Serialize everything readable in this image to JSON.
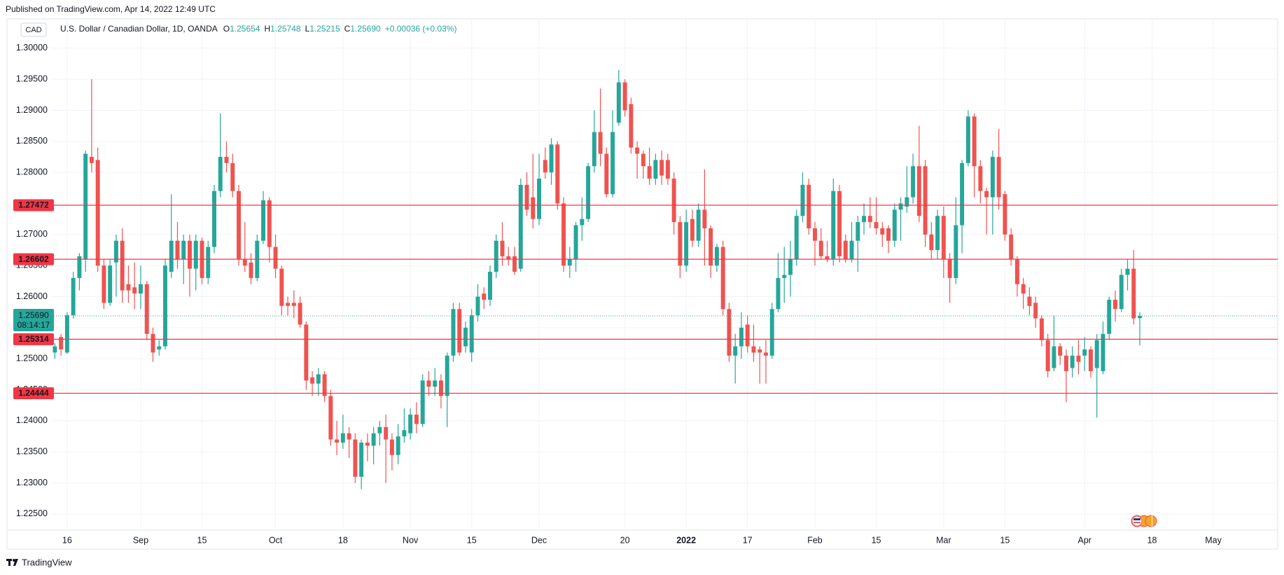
{
  "header": {
    "published": "Published on TradingView.com, Apr 14, 2022 12:49 UTC"
  },
  "footer": {
    "brand": "TradingView"
  },
  "chart_data": {
    "type": "candlestick",
    "title": "U.S. Dollar / Canadian Dollar, 1D, OANDA",
    "currency": "CAD",
    "legend": [
      {
        "label": "O",
        "value": "1.25654"
      },
      {
        "label": "H",
        "value": "1.25748"
      },
      {
        "label": "L",
        "value": "1.25215"
      },
      {
        "label": "C",
        "value": "1.25690"
      }
    ],
    "change": "+0.00036 (+0.03%)",
    "categories": [
      null,
      null,
      "16",
      null,
      null,
      null,
      null,
      null,
      null,
      null,
      null,
      null,
      null,
      null,
      "Sep",
      null,
      null,
      null,
      null,
      null,
      null,
      null,
      null,
      null,
      "15",
      null,
      null,
      null,
      null,
      null,
      null,
      null,
      null,
      null,
      null,
      null,
      "Oct",
      null,
      null,
      null,
      null,
      null,
      null,
      null,
      null,
      null,
      null,
      "18",
      null,
      null,
      null,
      null,
      null,
      null,
      null,
      null,
      null,
      null,
      "Nov",
      null,
      null,
      null,
      null,
      null,
      null,
      null,
      null,
      null,
      "15",
      null,
      null,
      null,
      null,
      null,
      null,
      null,
      null,
      null,
      null,
      "Dec",
      null,
      null,
      null,
      null,
      null,
      null,
      null,
      null,
      null,
      null,
      null,
      null,
      null,
      "20",
      null,
      null,
      null,
      null,
      null,
      null,
      null,
      null,
      null,
      "2022",
      null,
      null,
      null,
      null,
      null,
      null,
      null,
      null,
      null,
      "17",
      null,
      null,
      null,
      null,
      null,
      null,
      null,
      null,
      null,
      null,
      "Feb",
      null,
      null,
      null,
      null,
      null,
      null,
      null,
      null,
      null,
      "15",
      null,
      null,
      null,
      null,
      null,
      null,
      null,
      null,
      null,
      null,
      "Mar",
      null,
      null,
      null,
      null,
      null,
      null,
      null,
      null,
      null,
      "15",
      null,
      null,
      null,
      null,
      null,
      null,
      null,
      null,
      null,
      null,
      null,
      null,
      "Apr",
      null,
      null,
      null,
      null,
      null,
      null,
      null,
      null,
      null,
      null,
      "18",
      null,
      null,
      null,
      null,
      null,
      null,
      null,
      null,
      null,
      "May",
      null,
      null,
      null,
      null,
      null,
      null,
      null,
      null,
      null,
      null
    ],
    "open": [
      1.251,
      1.2535,
      1.251,
      1.257,
      1.263,
      1.266,
      1.2825,
      1.282,
      1.265,
      1.259,
      1.2655,
      1.269,
      1.262,
      1.2615,
      1.2605,
      1.262,
      1.254,
      1.2515,
      1.252,
      1.264,
      1.269,
      1.266,
      1.269,
      1.2645,
      1.269,
      1.263,
      1.268,
      1.277,
      1.2825,
      1.2815,
      1.277,
      1.266,
      1.2655,
      1.263,
      1.269,
      1.2755,
      1.268,
      1.2645,
      1.259,
      1.259,
      1.259,
      1.2555,
      1.247,
      1.246,
      1.2475,
      1.244,
      1.237,
      1.2365,
      1.238,
      1.237,
      1.231,
      1.2365,
      1.236,
      1.238,
      1.239,
      1.237,
      1.2345,
      1.2375,
      1.238,
      1.241,
      1.2395,
      1.2465,
      1.2455,
      1.2465,
      1.244,
      1.2505,
      1.258,
      1.252,
      1.251,
      1.257,
      1.2605,
      1.2595,
      1.264,
      1.269,
      1.2665,
      1.2665,
      1.2645,
      1.278,
      1.276,
      1.2725,
      1.282,
      1.28,
      1.2845,
      1.275,
      1.265,
      1.266,
      1.2715,
      1.2725,
      1.281,
      1.2865,
      1.283,
      1.2765,
      1.288,
      1.2945,
      1.291,
      1.284,
      1.283,
      1.281,
      1.279,
      1.282,
      1.282,
      1.279,
      1.272,
      1.265,
      1.2725,
      1.269,
      1.274,
      1.271,
      1.265,
      1.268,
      1.258,
      1.2505,
      1.252,
      1.2555,
      1.252,
      1.2515,
      1.251,
      1.2505,
      1.258,
      1.263,
      1.2635,
      1.266,
      1.273,
      1.278,
      1.271,
      1.269,
      1.2665,
      1.266,
      1.277,
      1.269,
      1.266,
      1.269,
      1.272,
      1.273,
      1.272,
      1.271,
      1.271,
      1.269,
      1.274,
      1.2745,
      1.276,
      1.281,
      1.281,
      1.27,
      1.2675,
      1.273,
      1.266,
      1.263,
      1.2715,
      1.2815,
      1.289,
      1.281,
      1.277,
      1.276,
      1.2825,
      1.2765,
      1.27,
      1.266,
      1.262,
      1.26,
      1.259,
      1.2565,
      1.253,
      1.2485,
      1.252,
      1.2505,
      1.2485,
      1.2505,
      1.2505,
      1.2515,
      1.2485,
      1.248,
      1.254,
      1.2595,
      1.258,
      1.2635,
      1.2645,
      1.25654,
      null,
      null,
      null,
      null,
      null,
      null,
      null,
      null,
      null,
      null,
      null,
      null,
      null,
      null,
      null,
      null,
      null,
      null,
      null,
      null,
      null,
      null
    ],
    "high": [
      1.2525,
      1.254,
      1.2575,
      1.264,
      1.267,
      1.2835,
      1.295,
      1.284,
      1.266,
      1.266,
      1.27,
      1.271,
      1.265,
      1.2655,
      1.265,
      1.2625,
      1.255,
      1.253,
      1.266,
      1.2765,
      1.272,
      1.27,
      1.27,
      1.27,
      1.2695,
      1.269,
      1.278,
      1.2895,
      1.285,
      1.283,
      1.278,
      1.272,
      1.267,
      1.27,
      1.277,
      1.276,
      1.27,
      1.265,
      1.26,
      1.261,
      1.26,
      1.256,
      1.248,
      1.2485,
      1.248,
      1.245,
      1.24,
      1.241,
      1.239,
      1.238,
      1.237,
      1.238,
      1.239,
      1.24,
      1.241,
      1.238,
      1.2395,
      1.242,
      1.242,
      1.243,
      1.2475,
      1.248,
      1.2485,
      1.2475,
      1.251,
      1.259,
      1.259,
      1.256,
      1.258,
      1.262,
      1.2615,
      1.265,
      1.27,
      1.272,
      1.268,
      1.268,
      1.279,
      1.28,
      1.283,
      1.283,
      1.284,
      1.2855,
      1.285,
      1.276,
      1.268,
      1.272,
      1.276,
      1.2815,
      1.29,
      1.2935,
      1.284,
      1.29,
      1.2965,
      1.295,
      1.292,
      1.285,
      1.2835,
      1.284,
      1.283,
      1.2835,
      1.283,
      1.28,
      1.273,
      1.274,
      1.274,
      1.275,
      1.2805,
      1.2715,
      1.2685,
      1.269,
      1.259,
      1.254,
      1.2575,
      1.257,
      1.2555,
      1.252,
      1.253,
      1.259,
      1.267,
      1.268,
      1.269,
      1.274,
      1.28,
      1.279,
      1.272,
      1.271,
      1.269,
      1.279,
      1.278,
      1.27,
      1.272,
      1.273,
      1.275,
      1.276,
      1.276,
      1.272,
      1.2715,
      1.275,
      1.276,
      1.281,
      1.283,
      1.2875,
      1.282,
      1.272,
      1.274,
      1.2745,
      1.267,
      1.276,
      1.282,
      1.29,
      1.2895,
      1.282,
      1.2775,
      1.2835,
      1.287,
      1.277,
      1.271,
      1.2665,
      1.263,
      1.2615,
      1.26,
      1.257,
      1.254,
      1.257,
      1.2525,
      1.2515,
      1.252,
      1.253,
      1.2535,
      1.252,
      1.254,
      1.256,
      1.26,
      1.261,
      1.2645,
      1.266,
      1.2675,
      1.25748,
      null,
      null,
      null,
      null,
      null,
      null,
      null,
      null,
      null,
      null,
      null,
      null,
      null,
      null,
      null,
      null,
      null,
      null,
      null,
      null,
      null,
      null
    ],
    "low": [
      1.25,
      1.2505,
      1.2508,
      1.2565,
      1.261,
      1.264,
      1.28,
      1.264,
      1.258,
      1.2585,
      1.26,
      1.259,
      1.259,
      1.258,
      1.258,
      1.253,
      1.2495,
      1.2505,
      1.2515,
      1.263,
      1.2645,
      1.262,
      1.26,
      1.261,
      1.262,
      1.262,
      1.267,
      1.276,
      1.28,
      1.276,
      1.265,
      1.264,
      1.262,
      1.2625,
      1.2685,
      1.2655,
      1.263,
      1.257,
      1.257,
      1.2565,
      1.255,
      1.245,
      1.244,
      1.244,
      1.243,
      1.236,
      1.2345,
      1.2355,
      1.234,
      1.23,
      1.229,
      1.2335,
      1.233,
      1.236,
      1.23,
      1.232,
      1.233,
      1.2365,
      1.237,
      1.238,
      1.239,
      1.244,
      1.244,
      1.242,
      1.239,
      1.2495,
      1.2505,
      1.251,
      1.2495,
      1.256,
      1.258,
      1.2585,
      1.263,
      1.265,
      1.265,
      1.2635,
      1.264,
      1.273,
      1.271,
      1.2715,
      1.279,
      1.278,
      1.274,
      1.264,
      1.263,
      1.264,
      1.269,
      1.272,
      1.28,
      1.281,
      1.276,
      1.276,
      1.2875,
      1.289,
      1.283,
      1.279,
      1.279,
      1.278,
      1.278,
      1.278,
      1.278,
      1.27,
      1.263,
      1.264,
      1.268,
      1.268,
      1.265,
      1.263,
      1.264,
      1.257,
      1.2495,
      1.246,
      1.25,
      1.251,
      1.2495,
      1.246,
      1.246,
      1.25,
      1.2575,
      1.259,
      1.26,
      1.265,
      1.272,
      1.27,
      1.265,
      1.266,
      1.2655,
      1.265,
      1.2655,
      1.2655,
      1.2655,
      1.264,
      1.27,
      1.271,
      1.27,
      1.268,
      1.267,
      1.268,
      1.269,
      1.2735,
      1.275,
      1.272,
      1.268,
      1.266,
      1.266,
      1.263,
      1.259,
      1.262,
      1.267,
      1.281,
      1.276,
      1.275,
      1.27,
      1.27,
      1.274,
      1.269,
      1.265,
      1.26,
      1.258,
      1.257,
      1.255,
      1.252,
      1.247,
      1.248,
      1.249,
      1.243,
      1.247,
      1.2475,
      1.248,
      1.247,
      1.2405,
      1.2475,
      1.253,
      1.256,
      1.2575,
      1.261,
      1.2555,
      1.25215,
      null,
      null,
      null,
      null,
      null,
      null,
      null,
      null,
      null,
      null,
      null,
      null,
      null,
      null,
      null,
      null,
      null,
      null,
      null,
      null,
      null,
      null
    ],
    "close": [
      1.252,
      1.2515,
      1.257,
      1.263,
      1.2665,
      1.283,
      1.2815,
      1.265,
      1.259,
      1.265,
      1.269,
      1.261,
      1.261,
      1.2605,
      1.262,
      1.254,
      1.251,
      1.252,
      1.265,
      1.269,
      1.266,
      1.269,
      1.2645,
      1.269,
      1.263,
      1.268,
      1.277,
      1.2825,
      1.2815,
      1.277,
      1.266,
      1.265,
      1.263,
      1.269,
      1.2755,
      1.268,
      1.2645,
      1.2585,
      1.2585,
      1.2585,
      1.2555,
      1.2465,
      1.246,
      1.2475,
      1.244,
      1.237,
      1.2365,
      1.238,
      1.237,
      1.231,
      1.2365,
      1.236,
      1.238,
      1.239,
      1.237,
      1.2345,
      1.2375,
      1.2385,
      1.241,
      1.2395,
      1.2465,
      1.2455,
      1.2465,
      1.244,
      1.2505,
      1.258,
      1.251,
      1.255,
      1.257,
      1.26,
      1.2595,
      1.264,
      1.269,
      1.2665,
      1.266,
      1.264,
      1.278,
      1.274,
      1.2725,
      1.279,
      1.28,
      1.2845,
      1.275,
      1.265,
      1.266,
      1.2715,
      1.2725,
      1.281,
      1.2865,
      1.283,
      1.2765,
      1.2865,
      1.2945,
      1.29,
      1.284,
      1.283,
      1.281,
      1.279,
      1.282,
      1.2795,
      1.279,
      1.272,
      1.265,
      1.272,
      1.269,
      1.274,
      1.271,
      1.265,
      1.268,
      1.258,
      1.2505,
      1.252,
      1.255,
      1.252,
      1.251,
      1.251,
      1.2505,
      1.258,
      1.263,
      1.2635,
      1.266,
      1.273,
      1.278,
      1.271,
      1.269,
      1.2665,
      1.266,
      1.277,
      1.2665,
      1.266,
      1.269,
      1.272,
      1.273,
      1.272,
      1.271,
      1.27,
      1.269,
      1.274,
      1.275,
      1.276,
      1.281,
      1.273,
      1.27,
      1.2675,
      1.273,
      1.266,
      1.263,
      1.2715,
      1.2815,
      1.289,
      1.281,
      1.277,
      1.276,
      1.2825,
      1.276,
      1.27,
      1.266,
      1.262,
      1.2605,
      1.2585,
      1.2565,
      1.253,
      1.248,
      1.252,
      1.2505,
      1.248,
      1.2505,
      1.2495,
      1.2515,
      1.248,
      1.253,
      1.254,
      1.2595,
      1.258,
      1.2635,
      1.2645,
      1.2565,
      1.2569,
      null,
      null,
      null,
      null,
      null,
      null,
      null,
      null,
      null,
      null,
      null,
      null,
      null,
      null,
      null,
      null,
      null,
      null,
      null,
      null,
      null,
      null
    ],
    "up_color": "#26a69a",
    "down_color": "#ef5350",
    "ylim": [
      1.2224,
      1.3046
    ],
    "yticks": [
      {
        "value": 1.3,
        "label": "1.30000"
      },
      {
        "value": 1.295,
        "label": "1.29500"
      },
      {
        "value": 1.29,
        "label": "1.29000"
      },
      {
        "value": 1.285,
        "label": "1.28500"
      },
      {
        "value": 1.28,
        "label": "1.28000"
      },
      {
        "value": 1.275,
        "label": "1.27500"
      },
      {
        "value": 1.27,
        "label": "1.27000"
      },
      {
        "value": 1.265,
        "label": "1.26500"
      },
      {
        "value": 1.26,
        "label": "1.26000"
      },
      {
        "value": 1.255,
        "label": "1.25500"
      },
      {
        "value": 1.25,
        "label": "1.25000"
      },
      {
        "value": 1.245,
        "label": "1.24500"
      },
      {
        "value": 1.24,
        "label": "1.24000"
      },
      {
        "value": 1.235,
        "label": "1.23500"
      },
      {
        "value": 1.23,
        "label": "1.23000"
      },
      {
        "value": 1.225,
        "label": "1.22500"
      }
    ],
    "grid": true,
    "hlines": [
      1.27472,
      1.26602,
      1.25314,
      1.24444
    ],
    "hline_color": "#f23645",
    "last_price": {
      "value": 1.2569,
      "label": "1.25690",
      "countdown": "08:14:17"
    }
  }
}
